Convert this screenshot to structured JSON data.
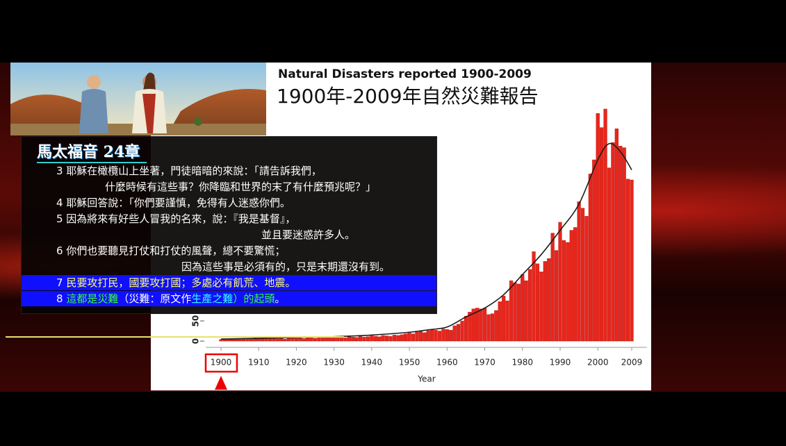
{
  "chart_data": {
    "type": "bar",
    "title": "Natural Disasters reported 1900-2009",
    "subtitle": "1900年-2009年自然災難報告",
    "x_label": "Year",
    "x": [
      1900,
      1901,
      1902,
      1903,
      1904,
      1905,
      1906,
      1907,
      1908,
      1909,
      1910,
      1911,
      1912,
      1913,
      1914,
      1915,
      1916,
      1917,
      1918,
      1919,
      1920,
      1921,
      1922,
      1923,
      1924,
      1925,
      1926,
      1927,
      1928,
      1929,
      1930,
      1931,
      1932,
      1933,
      1934,
      1935,
      1936,
      1937,
      1938,
      1939,
      1940,
      1941,
      1942,
      1943,
      1944,
      1945,
      1946,
      1947,
      1948,
      1949,
      1950,
      1951,
      1952,
      1953,
      1954,
      1955,
      1956,
      1957,
      1958,
      1959,
      1960,
      1961,
      1962,
      1963,
      1964,
      1965,
      1966,
      1967,
      1968,
      1969,
      1970,
      1971,
      1972,
      1973,
      1974,
      1975,
      1976,
      1977,
      1978,
      1979,
      1980,
      1981,
      1982,
      1983,
      1984,
      1985,
      1986,
      1987,
      1988,
      1989,
      1990,
      1991,
      1992,
      1993,
      1994,
      1995,
      1996,
      1997,
      1998,
      1999,
      2000,
      2001,
      2002,
      2003,
      2004,
      2005,
      2006,
      2007,
      2008,
      2009
    ],
    "series": [
      {
        "color": "#e8261b",
        "values": [
          4,
          5,
          5,
          4,
          6,
          5,
          7,
          6,
          5,
          8,
          6,
          7,
          6,
          8,
          7,
          6,
          7,
          5,
          7,
          8,
          7,
          8,
          6,
          9,
          8,
          7,
          9,
          8,
          10,
          9,
          8,
          10,
          9,
          8,
          11,
          10,
          9,
          12,
          10,
          11,
          13,
          12,
          11,
          14,
          13,
          12,
          15,
          14,
          16,
          18,
          20,
          18,
          22,
          24,
          21,
          26,
          28,
          27,
          25,
          30,
          29,
          27,
          38,
          42,
          50,
          62,
          72,
          80,
          82,
          80,
          82,
          66,
          68,
          76,
          98,
          112,
          100,
          150,
          145,
          142,
          165,
          150,
          178,
          222,
          192,
          172,
          198,
          205,
          268,
          225,
          295,
          250,
          245,
          275,
          282,
          346,
          330,
          310,
          415,
          450,
          565,
          530,
          576,
          430,
          493,
          527,
          484,
          480,
          402,
          400
        ]
      }
    ],
    "trend": {
      "type": "line",
      "color": "#1a1a1a",
      "x": [
        1900,
        1910,
        1920,
        1930,
        1940,
        1950,
        1955,
        1960,
        1965,
        1970,
        1975,
        1980,
        1985,
        1990,
        1995,
        2000,
        2003,
        2006,
        2009
      ],
      "values": [
        5,
        7,
        9,
        11,
        15,
        22,
        28,
        35,
        60,
        82,
        115,
        165,
        215,
        275,
        340,
        450,
        490,
        470,
        425
      ]
    },
    "xlim": [
      1896,
      2013
    ],
    "xticks": [
      1900,
      1910,
      1920,
      1930,
      1940,
      1950,
      1960,
      1970,
      1980,
      1990,
      2000,
      2009
    ],
    "ylim": [
      0,
      600
    ],
    "yticks": [
      0,
      50
    ]
  },
  "passage": {
    "heading": "馬太福音 24章",
    "lines": [
      {
        "segments": [
          {
            "text": "3 耶穌在橄欖山上坐著，門徒暗暗的來說：「請告訴我們，",
            "color": "#ffffff"
          }
        ],
        "indent": 50
      },
      {
        "segments": [
          {
            "text": "什麼時候有這些事？你降臨和世界的末了有什麼預兆呢？」",
            "color": "#ffffff"
          }
        ],
        "indent": 120
      },
      {
        "segments": [
          {
            "text": "4 耶穌回答說：「你們要謹慎，免得有人迷惑你們。",
            "color": "#ffffff"
          }
        ],
        "indent": 50
      },
      {
        "segments": [
          {
            "text": "5 因為將來有好些人冒我的名來，說：『我是基督』，",
            "color": "#ffffff"
          }
        ],
        "indent": 50
      },
      {
        "segments": [
          {
            "text": "並且要迷惑許多人。",
            "color": "#ffffff"
          }
        ],
        "indent": 345
      },
      {
        "segments": [
          {
            "text": "6 你們也要聽見打仗和打仗的風聲，總不要驚慌；",
            "color": "#ffffff"
          }
        ],
        "indent": 50
      },
      {
        "segments": [
          {
            "text": "因為這些事是必須有的，只是末期還沒有到。",
            "color": "#ffffff"
          }
        ],
        "indent": 230
      },
      {
        "segments": [
          {
            "text": "7 ",
            "color": "#ffffff"
          },
          {
            "text": "民要攻打民，國要攻打國；多處必有飢荒、地震。",
            "color": "#ffff66"
          }
        ],
        "indent": 50,
        "highlight": "#1010ff"
      },
      {
        "segments": [
          {
            "text": "8 ",
            "color": "#ffffff"
          },
          {
            "text": "這都是災難",
            "color": "#33ff33"
          },
          {
            "text": "（災難：原文作",
            "color": "#ffffff"
          },
          {
            "text": "生產之難",
            "color": "#33ffff"
          },
          {
            "text": "）的起頭",
            "color": "#33ff33"
          },
          {
            "text": "。",
            "color": "#ffffff"
          }
        ],
        "indent": 50,
        "highlight": "#1010ff"
      }
    ]
  }
}
